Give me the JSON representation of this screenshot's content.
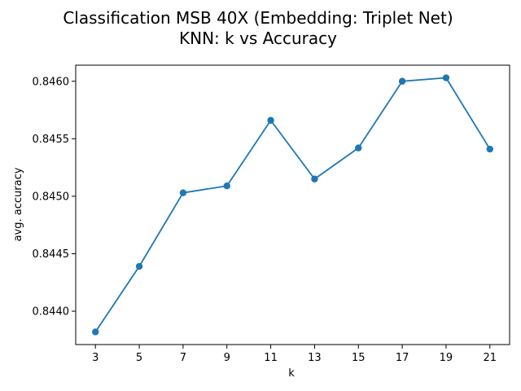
{
  "chart_data": {
    "type": "line",
    "title_lines": [
      "Classification MSB 40X (Embedding: Triplet Net)",
      "KNN: k vs  Accuracy"
    ],
    "xlabel": "k",
    "ylabel": "avg. accuracy",
    "x": [
      3,
      5,
      7,
      9,
      11,
      13,
      15,
      17,
      19,
      21
    ],
    "series": [
      {
        "values": [
          0.84382,
          0.84439,
          0.84503,
          0.84509,
          0.84566,
          0.84515,
          0.84542,
          0.846,
          0.84603,
          0.84541
        ]
      }
    ],
    "xticks": [
      "3",
      "5",
      "7",
      "9",
      "11",
      "13",
      "15",
      "17",
      "19",
      "21"
    ],
    "yticks": [
      "0.8440",
      "0.8445",
      "0.8450",
      "0.8455",
      "0.8460"
    ],
    "ytick_values": [
      0.844,
      0.8445,
      0.845,
      0.8455,
      0.846
    ],
    "xlim": [
      2.1,
      21.9
    ],
    "ylim": [
      0.84371,
      0.84614
    ],
    "grid": false,
    "colors": {
      "line": "#1f77b4",
      "marker": "#1f77b4",
      "axis": "#000000"
    },
    "marker": "circle"
  }
}
